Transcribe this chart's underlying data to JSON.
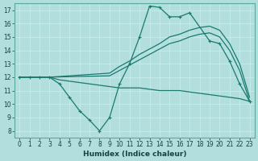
{
  "xlabel": "Humidex (Indice chaleur)",
  "bg_color": "#b2dede",
  "grid_color": "#c8ecec",
  "line_color": "#1a7a6e",
  "xlim": [
    -0.5,
    23.5
  ],
  "ylim": [
    7.5,
    17.5
  ],
  "yticks": [
    8,
    9,
    10,
    11,
    12,
    13,
    14,
    15,
    16,
    17
  ],
  "xticks": [
    0,
    1,
    2,
    3,
    4,
    5,
    6,
    7,
    8,
    9,
    10,
    11,
    12,
    13,
    14,
    15,
    16,
    17,
    18,
    19,
    20,
    21,
    22,
    23
  ],
  "curves": [
    {
      "x": [
        0,
        1,
        2,
        3,
        4,
        5,
        6,
        7,
        8,
        9,
        10,
        11,
        12,
        13,
        14,
        15,
        16,
        17,
        19,
        20,
        21,
        22,
        23
      ],
      "y": [
        12,
        12,
        12,
        12,
        11.5,
        10.5,
        9.5,
        8.8,
        8.0,
        9.0,
        11.5,
        13.0,
        15.0,
        17.3,
        17.2,
        16.5,
        16.5,
        16.8,
        14.7,
        14.5,
        13.2,
        11.5,
        10.2
      ]
    },
    {
      "x": [
        0,
        3,
        9,
        10,
        11,
        12,
        13,
        14,
        15,
        16,
        17,
        18,
        19,
        20,
        21,
        22,
        23
      ],
      "y": [
        12,
        12,
        12.3,
        12.8,
        13.2,
        13.7,
        14.1,
        14.5,
        15.0,
        15.2,
        15.5,
        15.7,
        15.8,
        15.5,
        14.5,
        13.0,
        10.5
      ]
    },
    {
      "x": [
        0,
        3,
        9,
        10,
        11,
        12,
        13,
        14,
        15,
        16,
        17,
        18,
        19,
        20,
        21,
        22,
        23
      ],
      "y": [
        12,
        12,
        12.1,
        12.5,
        12.9,
        13.3,
        13.7,
        14.1,
        14.5,
        14.7,
        15.0,
        15.2,
        15.3,
        15.0,
        14.0,
        12.5,
        10.2
      ]
    },
    {
      "x": [
        0,
        3,
        4,
        9,
        10,
        11,
        12,
        13,
        14,
        15,
        16,
        17,
        18,
        19,
        20,
        21,
        22,
        23
      ],
      "y": [
        12,
        12,
        11.8,
        11.3,
        11.2,
        11.2,
        11.2,
        11.1,
        11.0,
        11.0,
        11.0,
        10.9,
        10.8,
        10.7,
        10.6,
        10.5,
        10.4,
        10.2
      ]
    }
  ]
}
